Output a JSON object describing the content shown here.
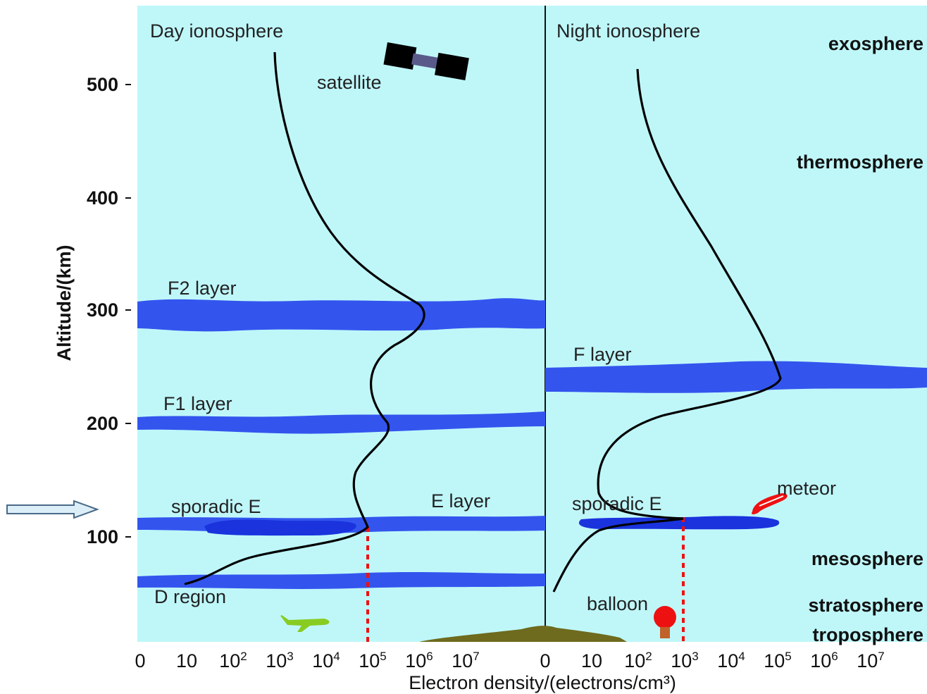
{
  "panels": {
    "day_title": "Day  ionosphere",
    "night_title": "Night  ionosphere"
  },
  "axes": {
    "y_label": "Altitude/(km)",
    "y_ticks": [
      {
        "value": 100,
        "label": "100"
      },
      {
        "value": 200,
        "label": "200"
      },
      {
        "value": 300,
        "label": "300"
      },
      {
        "value": 400,
        "label": "400"
      },
      {
        "value": 500,
        "label": "500"
      }
    ],
    "x_label": "Electron density/(electrons/cm³)",
    "day_x_ticks": [
      {
        "base": "0",
        "exp": ""
      },
      {
        "base": "10",
        "exp": ""
      },
      {
        "base": "10",
        "exp": "2"
      },
      {
        "base": "10",
        "exp": "3"
      },
      {
        "base": "10",
        "exp": "4"
      },
      {
        "base": "10",
        "exp": "5"
      },
      {
        "base": "10",
        "exp": "6"
      },
      {
        "base": "10",
        "exp": "7"
      }
    ],
    "night_x_ticks": [
      {
        "base": "0",
        "exp": ""
      },
      {
        "base": "10",
        "exp": ""
      },
      {
        "base": "10",
        "exp": "2"
      },
      {
        "base": "10",
        "exp": "3"
      },
      {
        "base": "10",
        "exp": "4"
      },
      {
        "base": "10",
        "exp": "5"
      },
      {
        "base": "10",
        "exp": "6"
      },
      {
        "base": "10",
        "exp": "7"
      }
    ]
  },
  "layers_day": {
    "f2": "F2 layer",
    "f1": "F1 layer",
    "sporadic_e": "sporadic E",
    "e": "E layer",
    "d": "D region"
  },
  "layers_night": {
    "f": "F layer",
    "sporadic_e": "sporadic E"
  },
  "atmosphere": {
    "exosphere": "exosphere",
    "thermosphere": "thermosphere",
    "mesosphere": "mesosphere",
    "stratosphere": "stratosphere",
    "troposphere": "troposphere"
  },
  "objects": {
    "satellite": "satellite",
    "meteor": "meteor",
    "balloon": "balloon",
    "airplane_icon": "airplane-icon",
    "satellite_icon": "satellite-icon",
    "balloon_icon": "balloon-icon",
    "meteor_icon": "meteor-icon",
    "mountain_icon": "mountain-icon",
    "arrow_icon": "arrow-right-icon"
  },
  "colors": {
    "background": "#bff7f9",
    "layer": "#3355ee",
    "sporadic_dark": "#1a33dd",
    "profile": "#000000",
    "marker": "#ee1111",
    "ground": "#6e6a1e"
  }
}
